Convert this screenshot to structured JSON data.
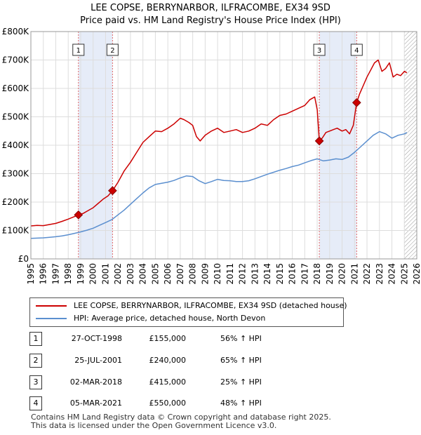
{
  "title": {
    "line1": "LEE COPSE, BERRYNARBOR, ILFRACOMBE, EX34 9SD",
    "line2": "Price paid vs. HM Land Registry's House Price Index (HPI)"
  },
  "chart_data": {
    "type": "line",
    "title": "Price paid vs. HM Land Registry's House Price Index (HPI)",
    "xlabel": "",
    "ylabel": "",
    "xlim": [
      1995,
      2026
    ],
    "ylim": [
      0,
      800000
    ],
    "x_ticks": [
      "1995",
      "1996",
      "1997",
      "1998",
      "1999",
      "2000",
      "2001",
      "2002",
      "2003",
      "2004",
      "2005",
      "2006",
      "2007",
      "2008",
      "2009",
      "2010",
      "2011",
      "2012",
      "2013",
      "2014",
      "2015",
      "2016",
      "2017",
      "2018",
      "2019",
      "2020",
      "2021",
      "2022",
      "2023",
      "2024",
      "2025",
      "2026"
    ],
    "y_ticks": [
      {
        "value": 0,
        "label": "£0"
      },
      {
        "value": 100000,
        "label": "£100K"
      },
      {
        "value": 200000,
        "label": "£200K"
      },
      {
        "value": 300000,
        "label": "£300K"
      },
      {
        "value": 400000,
        "label": "£400K"
      },
      {
        "value": 500000,
        "label": "£500K"
      },
      {
        "value": 600000,
        "label": "£600K"
      },
      {
        "value": 700000,
        "label": "£700K"
      },
      {
        "value": 800000,
        "label": "£800K"
      }
    ],
    "grid": true,
    "hatch_from": 2025.0,
    "shaded_spans": [
      [
        1998.82,
        2001.56
      ],
      [
        2018.17,
        2021.17
      ]
    ],
    "series": [
      {
        "name": "LEE COPSE, BERRYNARBOR, ILFRACOMBE, EX34 9SD (detached house)",
        "color": "#cc0000",
        "x": [
          1995.0,
          1995.5,
          1996.0,
          1996.5,
          1997.0,
          1997.5,
          1998.0,
          1998.5,
          1998.82,
          1999.2,
          1999.6,
          2000.0,
          2000.4,
          2000.8,
          2001.2,
          2001.56,
          2002.0,
          2002.5,
          2003.0,
          2003.5,
          2004.0,
          2004.5,
          2005.0,
          2005.5,
          2006.0,
          2006.5,
          2007.0,
          2007.3,
          2007.7,
          2008.0,
          2008.3,
          2008.6,
          2009.0,
          2009.5,
          2010.0,
          2010.5,
          2011.0,
          2011.5,
          2012.0,
          2012.5,
          2013.0,
          2013.5,
          2014.0,
          2014.5,
          2015.0,
          2015.5,
          2016.0,
          2016.5,
          2017.0,
          2017.4,
          2017.8,
          2018.0,
          2018.17,
          2018.4,
          2018.7,
          2019.0,
          2019.3,
          2019.6,
          2020.0,
          2020.3,
          2020.6,
          2020.9,
          2021.17,
          2021.4,
          2021.7,
          2022.0,
          2022.3,
          2022.6,
          2022.9,
          2023.2,
          2023.5,
          2023.8,
          2024.1,
          2024.4,
          2024.7,
          2025.0,
          2025.2
        ],
        "values": [
          116000,
          118000,
          117000,
          121000,
          125000,
          132000,
          140000,
          149000,
          155000,
          160000,
          170000,
          180000,
          195000,
          210000,
          222000,
          240000,
          270000,
          310000,
          340000,
          375000,
          410000,
          430000,
          450000,
          448000,
          460000,
          475000,
          495000,
          490000,
          480000,
          470000,
          430000,
          415000,
          435000,
          450000,
          460000,
          445000,
          450000,
          455000,
          445000,
          450000,
          460000,
          475000,
          470000,
          490000,
          505000,
          510000,
          520000,
          530000,
          540000,
          560000,
          570000,
          525000,
          415000,
          425000,
          445000,
          450000,
          455000,
          460000,
          450000,
          455000,
          440000,
          470000,
          550000,
          580000,
          610000,
          640000,
          665000,
          690000,
          700000,
          660000,
          670000,
          690000,
          640000,
          650000,
          645000,
          660000,
          655000
        ]
      },
      {
        "name": "HPI: Average price, detached house, North Devon",
        "color": "#5b8fcf",
        "x": [
          1995.0,
          1995.5,
          1996.0,
          1996.5,
          1997.0,
          1997.5,
          1998.0,
          1998.5,
          1999.0,
          1999.5,
          2000.0,
          2000.5,
          2001.0,
          2001.5,
          2002.0,
          2002.5,
          2003.0,
          2003.5,
          2004.0,
          2004.5,
          2005.0,
          2005.5,
          2006.0,
          2006.5,
          2007.0,
          2007.5,
          2008.0,
          2008.5,
          2009.0,
          2009.5,
          2010.0,
          2010.5,
          2011.0,
          2011.5,
          2012.0,
          2012.5,
          2013.0,
          2013.5,
          2014.0,
          2014.5,
          2015.0,
          2015.5,
          2016.0,
          2016.5,
          2017.0,
          2017.5,
          2018.0,
          2018.5,
          2019.0,
          2019.5,
          2020.0,
          2020.5,
          2021.0,
          2021.5,
          2022.0,
          2022.5,
          2023.0,
          2023.5,
          2024.0,
          2024.5,
          2025.0,
          2025.2
        ],
        "values": [
          72000,
          73000,
          74000,
          76000,
          78000,
          81000,
          85000,
          90000,
          95000,
          101000,
          108000,
          118000,
          128000,
          138000,
          155000,
          172000,
          192000,
          212000,
          232000,
          250000,
          262000,
          266000,
          270000,
          276000,
          285000,
          292000,
          290000,
          275000,
          265000,
          272000,
          280000,
          276000,
          275000,
          272000,
          272000,
          275000,
          282000,
          290000,
          298000,
          305000,
          312000,
          318000,
          325000,
          330000,
          338000,
          346000,
          352000,
          345000,
          348000,
          352000,
          350000,
          358000,
          375000,
          395000,
          415000,
          435000,
          448000,
          440000,
          425000,
          435000,
          440000,
          445000
        ]
      }
    ],
    "transactions": [
      {
        "id": "1",
        "date": "27-OCT-1998",
        "x": 1998.82,
        "price": 155000,
        "price_label": "£155,000",
        "hpi": "56% ↑ HPI"
      },
      {
        "id": "2",
        "date": "25-JUL-2001",
        "x": 2001.56,
        "price": 240000,
        "price_label": "£240,000",
        "hpi": "65% ↑ HPI"
      },
      {
        "id": "3",
        "date": "02-MAR-2018",
        "x": 2018.17,
        "price": 415000,
        "price_label": "£415,000",
        "hpi": "25% ↑ HPI"
      },
      {
        "id": "4",
        "date": "05-MAR-2021",
        "x": 2021.17,
        "price": 550000,
        "price_label": "£550,000",
        "hpi": "48% ↑ HPI"
      }
    ]
  },
  "legend": {
    "property_label": "LEE COPSE, BERRYNARBOR, ILFRACOMBE, EX34 9SD (detached house)",
    "hpi_label": "HPI: Average price, detached house, North Devon"
  },
  "footer": {
    "line1": "Contains HM Land Registry data © Crown copyright and database right 2025.",
    "line2": "This data is licensed under the Open Government Licence v3.0."
  }
}
